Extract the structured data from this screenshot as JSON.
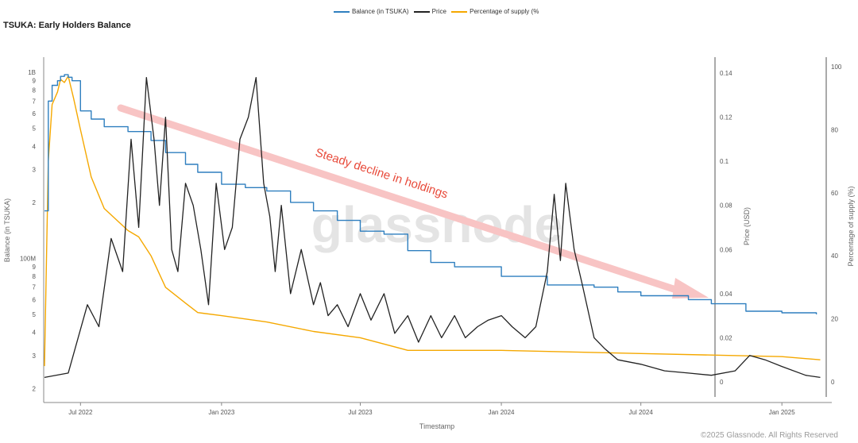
{
  "title": "TSUKA: Early Holders Balance",
  "footer": "©2025 Glassnode. All Rights Reserved",
  "watermark": "glassnode",
  "legend": [
    {
      "label": "Balance (in TSUKA)",
      "color": "#2f7fbf"
    },
    {
      "label": "Price",
      "color": "#222222"
    },
    {
      "label": "Percentage of supply (%",
      "color": "#f5a800"
    }
  ],
  "annotation": "Steady decline in holdings",
  "chart_data": {
    "type": "line",
    "title": "TSUKA: Early Holders Balance",
    "xlabel": "Timestamp",
    "x_ticks": [
      "Jul 2022",
      "Jan 2023",
      "Jul 2023",
      "Jan 2024",
      "Jul 2024",
      "Jan 2025"
    ],
    "y_left": {
      "label": "Balance (in TSUKA)",
      "scale": "log",
      "ticks": [
        "1B",
        "9",
        "8",
        "7",
        "6",
        "5",
        "4",
        "3",
        "2",
        "100M",
        "9",
        "8",
        "7",
        "6",
        "5",
        "4",
        "3",
        "2"
      ]
    },
    "y_right1": {
      "label": "Price (USD)",
      "ticks": [
        "0.14",
        "0.12",
        "0.1",
        "0.08",
        "0.06",
        "0.04",
        "0.02",
        "0"
      ],
      "range": [
        0,
        0.14
      ]
    },
    "y_right2": {
      "label": "Percentage of supply (%)",
      "ticks": [
        "100",
        "80",
        "60",
        "40",
        "20",
        "0"
      ],
      "range": [
        0,
        100
      ]
    },
    "series": [
      {
        "name": "Balance (in TSUKA)",
        "color": "#2f7fbf",
        "x": [
          "2022-05-15",
          "2022-05-20",
          "2022-05-25",
          "2022-06-01",
          "2022-06-05",
          "2022-06-10",
          "2022-06-15",
          "2022-06-20",
          "2022-07-01",
          "2022-07-15",
          "2022-08-01",
          "2022-09-01",
          "2022-10-01",
          "2022-10-20",
          "2022-11-15",
          "2022-12-01",
          "2023-01-01",
          "2023-02-01",
          "2023-03-01",
          "2023-04-01",
          "2023-05-01",
          "2023-06-01",
          "2023-07-01",
          "2023-08-01",
          "2023-09-01",
          "2023-10-01",
          "2023-11-01",
          "2024-01-01",
          "2024-03-01",
          "2024-05-01",
          "2024-06-01",
          "2024-07-01",
          "2024-09-01",
          "2024-10-01",
          "2024-11-15",
          "2025-01-01",
          "2025-02-15"
        ],
        "values": [
          180000000,
          700000000,
          850000000,
          900000000,
          950000000,
          970000000,
          940000000,
          900000000,
          620000000,
          560000000,
          510000000,
          480000000,
          430000000,
          370000000,
          320000000,
          290000000,
          250000000,
          240000000,
          230000000,
          200000000,
          180000000,
          160000000,
          140000000,
          135000000,
          110000000,
          95000000,
          90000000,
          80000000,
          72000000,
          70000000,
          66000000,
          63000000,
          60000000,
          57000000,
          52000000,
          51000000,
          50000000
        ]
      },
      {
        "name": "Price",
        "color": "#222222",
        "x": [
          "2022-05-15",
          "2022-06-15",
          "2022-07-10",
          "2022-07-25",
          "2022-08-10",
          "2022-08-25",
          "2022-09-05",
          "2022-09-15",
          "2022-09-25",
          "2022-10-05",
          "2022-10-12",
          "2022-10-20",
          "2022-10-28",
          "2022-11-05",
          "2022-11-15",
          "2022-11-25",
          "2022-12-05",
          "2022-12-15",
          "2022-12-25",
          "2023-01-05",
          "2023-01-15",
          "2023-01-25",
          "2023-02-05",
          "2023-02-15",
          "2023-02-25",
          "2023-03-05",
          "2023-03-12",
          "2023-03-20",
          "2023-04-01",
          "2023-04-15",
          "2023-05-01",
          "2023-05-10",
          "2023-05-20",
          "2023-06-01",
          "2023-06-15",
          "2023-07-01",
          "2023-07-15",
          "2023-08-01",
          "2023-08-15",
          "2023-09-01",
          "2023-09-15",
          "2023-10-01",
          "2023-10-15",
          "2023-11-01",
          "2023-11-15",
          "2023-12-01",
          "2023-12-15",
          "2024-01-01",
          "2024-01-15",
          "2024-02-01",
          "2024-02-15",
          "2024-03-01",
          "2024-03-10",
          "2024-03-18",
          "2024-03-25",
          "2024-04-05",
          "2024-04-15",
          "2024-05-01",
          "2024-05-15",
          "2024-06-01",
          "2024-07-01",
          "2024-08-01",
          "2024-09-01",
          "2024-10-01",
          "2024-11-01",
          "2024-11-20",
          "2024-12-10",
          "2025-01-01",
          "2025-02-01",
          "2025-02-20"
        ],
        "values": [
          0.002,
          0.004,
          0.035,
          0.025,
          0.065,
          0.05,
          0.11,
          0.07,
          0.138,
          0.11,
          0.08,
          0.12,
          0.06,
          0.05,
          0.09,
          0.08,
          0.06,
          0.035,
          0.09,
          0.06,
          0.07,
          0.11,
          0.12,
          0.138,
          0.09,
          0.075,
          0.05,
          0.08,
          0.04,
          0.06,
          0.035,
          0.045,
          0.03,
          0.035,
          0.025,
          0.04,
          0.028,
          0.04,
          0.022,
          0.03,
          0.018,
          0.03,
          0.02,
          0.03,
          0.02,
          0.025,
          0.028,
          0.03,
          0.025,
          0.02,
          0.025,
          0.05,
          0.085,
          0.055,
          0.09,
          0.06,
          0.045,
          0.02,
          0.015,
          0.01,
          0.008,
          0.005,
          0.004,
          0.003,
          0.005,
          0.012,
          0.01,
          0.007,
          0.003,
          0.002
        ]
      },
      {
        "name": "Percentage of supply (%",
        "color": "#f5a800",
        "x": [
          "2022-05-15",
          "2022-05-20",
          "2022-05-25",
          "2022-06-01",
          "2022-06-05",
          "2022-06-10",
          "2022-06-15",
          "2022-06-22",
          "2022-07-01",
          "2022-07-15",
          "2022-08-01",
          "2022-09-01",
          "2022-09-15",
          "2022-10-01",
          "2022-10-20",
          "2022-11-15",
          "2022-12-01",
          "2023-01-01",
          "2023-03-01",
          "2023-05-01",
          "2023-07-01",
          "2023-09-01",
          "2024-01-01",
          "2024-07-01",
          "2025-01-01",
          "2025-02-20"
        ],
        "values": [
          5,
          70,
          88,
          92,
          96,
          95,
          97,
          90,
          80,
          65,
          55,
          48,
          46,
          40,
          30,
          25,
          22,
          21,
          19,
          16,
          14,
          10,
          10,
          9,
          8,
          7
        ]
      }
    ]
  }
}
